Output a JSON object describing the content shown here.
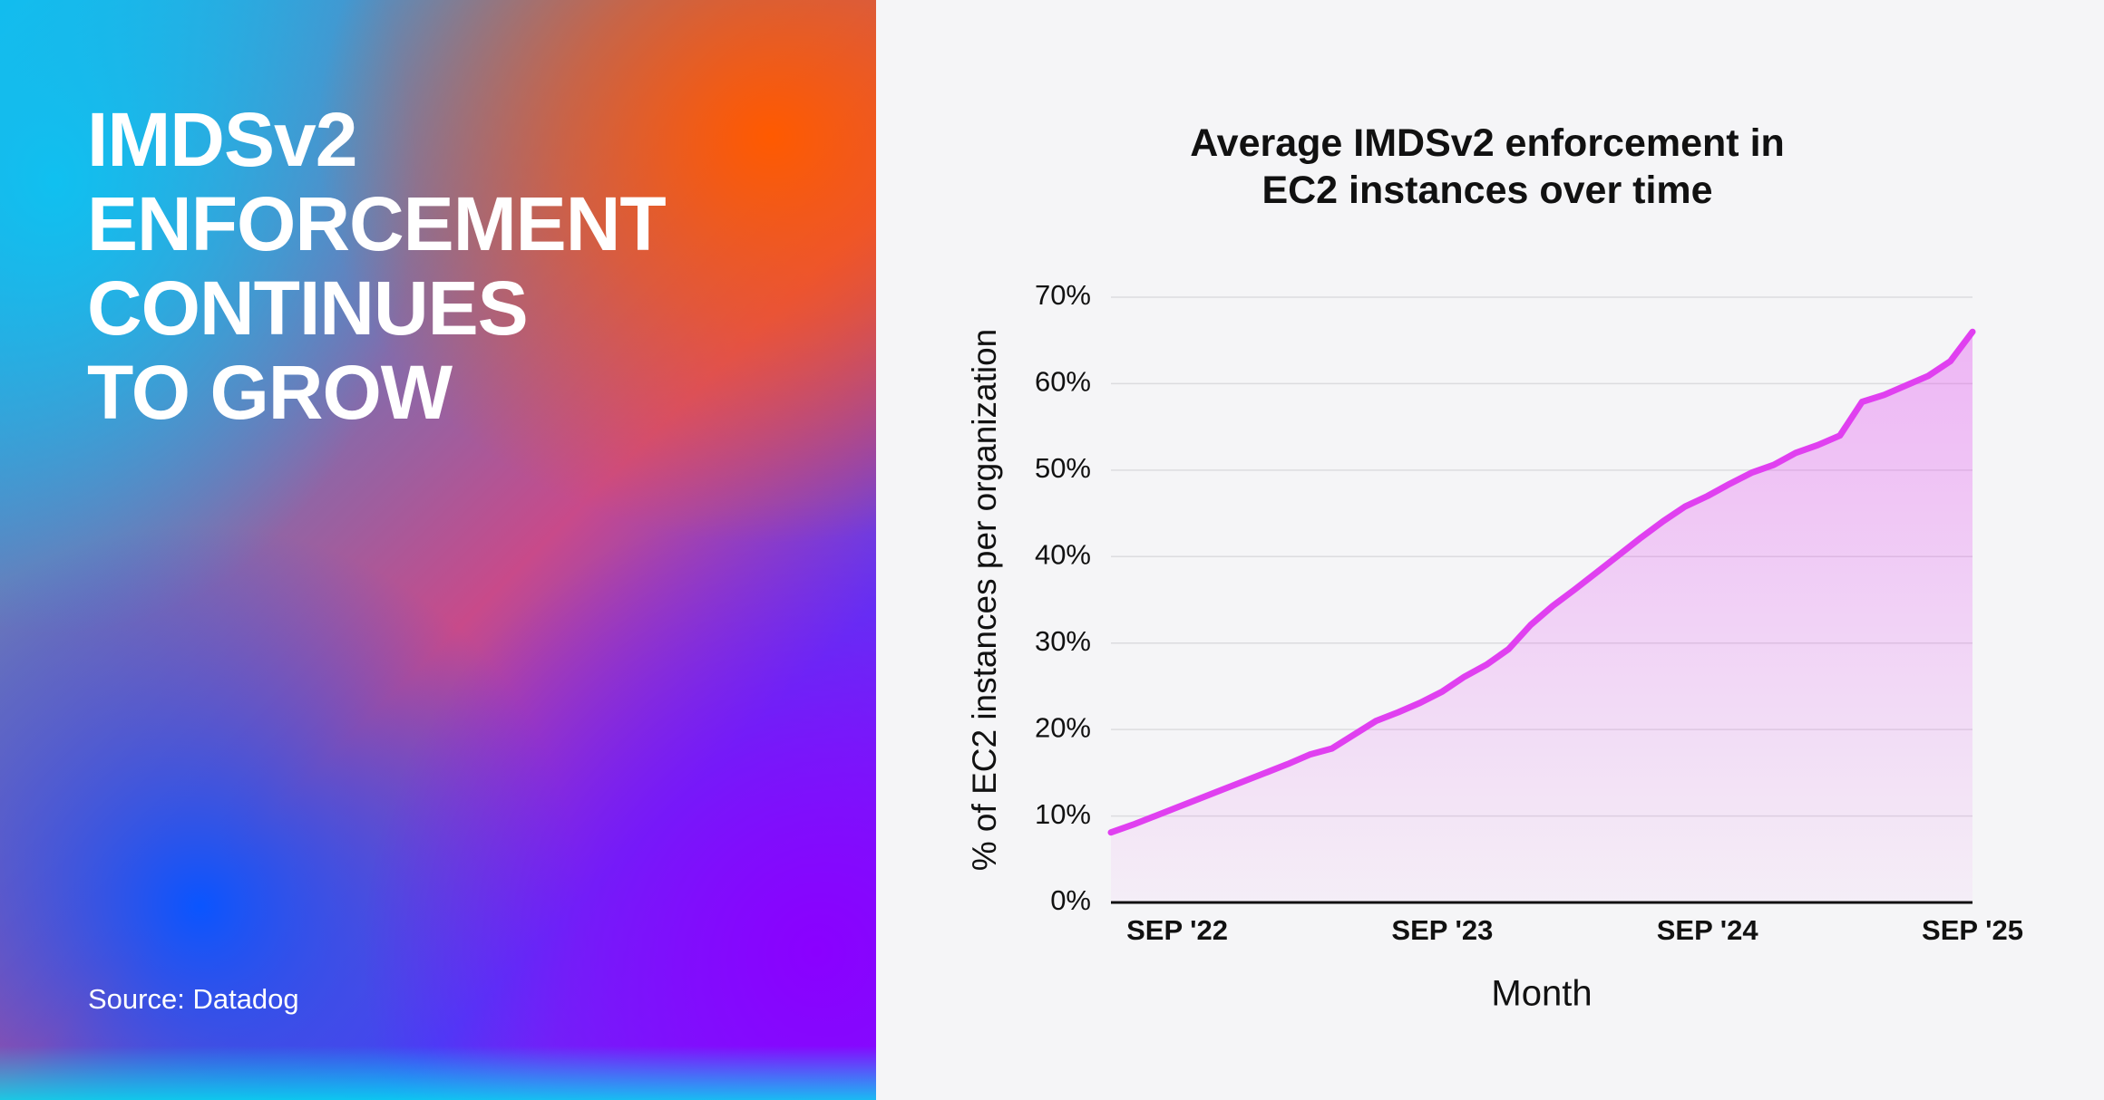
{
  "headline": [
    "IMDSv2",
    "ENFORCEMENT",
    "CONTINUES",
    "TO GROW"
  ],
  "source": "Source: Datadog",
  "chart_data": {
    "type": "area",
    "title": "Average IMDSv2 enforcement in EC2 instances over time",
    "x_label": "Month",
    "y_label": "% of EC2 instances per organization",
    "categories": [
      null,
      null,
      null,
      "SEP '22",
      null,
      null,
      null,
      null,
      null,
      null,
      null,
      null,
      null,
      null,
      null,
      "SEP '23",
      null,
      null,
      null,
      null,
      null,
      null,
      null,
      null,
      null,
      null,
      null,
      "SEP '24",
      null,
      null,
      null,
      null,
      null,
      null,
      null,
      null,
      null,
      null,
      null,
      "SEP '25"
    ],
    "series": [
      {
        "name": "Average IMDSv2 enforcement",
        "color": "#e040f0",
        "values": [
          8.1,
          9.0,
          10.0,
          11.0,
          12.0,
          13.0,
          14.0,
          15.0,
          16.0,
          17.1,
          17.8,
          19.4,
          21.0,
          22.0,
          23.1,
          24.4,
          26.1,
          27.5,
          29.3,
          32.1,
          34.3,
          36.2,
          38.2,
          40.2,
          42.2,
          44.1,
          45.8,
          47.0,
          48.4,
          49.7,
          50.6,
          52.0,
          52.9,
          54.0,
          57.9,
          58.7,
          59.8,
          60.9,
          62.6,
          66.0
        ]
      }
    ],
    "ylim": [
      0,
      70
    ],
    "yticks": [
      {
        "value": 0,
        "label": "0%"
      },
      {
        "value": 10,
        "label": "10%"
      },
      {
        "value": 20,
        "label": "20%"
      },
      {
        "value": 30,
        "label": "30%"
      },
      {
        "value": 40,
        "label": "40%"
      },
      {
        "value": 50,
        "label": "50%"
      },
      {
        "value": 60,
        "label": "60%"
      },
      {
        "value": 70,
        "label": "70%"
      }
    ],
    "grid": true
  }
}
